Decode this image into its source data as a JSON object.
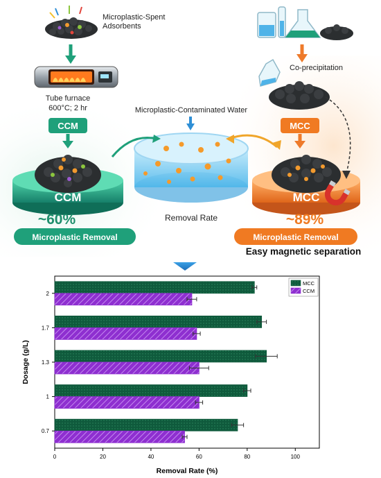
{
  "colors": {
    "mcc": "#0f5a3c",
    "ccm": "#8e2fd0",
    "ccm_badge": "#1fa07a",
    "mcc_badge": "#f07a22",
    "arrow_blue": "#2f8fd6",
    "arrow_orange": "#ee7a2a"
  },
  "graphic": {
    "spent_label": "Microplastic-Spent\nAdsorbents",
    "furnace_label": "Tube furnace",
    "furnace_conditions": "600°C; 2 hr",
    "ccm_badge": "CCM",
    "ccm_platform": "CCM",
    "ccm_pct": "~60%",
    "ccm_removal": "Microplastic Removal",
    "water_label": "Microplastic-Contaminated Water",
    "removal_rate_label": "Removal Rate",
    "coprecip_label": "Co-precipitation",
    "mcc_badge": "MCC",
    "mcc_platform": "MCC",
    "mcc_pct": "~89%",
    "mcc_removal": "Microplastic Removal",
    "magnetic_label": "Easy magnetic separation"
  },
  "chart_data": {
    "type": "bar",
    "orientation": "horizontal",
    "categories": [
      "0.7",
      "1",
      "1.3",
      "1.7",
      "2"
    ],
    "series": [
      {
        "name": "MCC",
        "values": [
          76,
          80,
          88,
          86,
          83
        ],
        "errors": [
          2.5,
          1.5,
          4.5,
          2,
          1
        ]
      },
      {
        "name": "CCM",
        "values": [
          54,
          60,
          60,
          59,
          57
        ],
        "errors": [
          1,
          1.5,
          4,
          1.5,
          2
        ]
      }
    ],
    "xlabel": "Removal Rate (%)",
    "ylabel": "Dosage (g/L)",
    "xlim": [
      0,
      110
    ],
    "xticks": [
      0,
      20,
      40,
      60,
      80,
      100
    ],
    "legend_position": "top-right"
  }
}
